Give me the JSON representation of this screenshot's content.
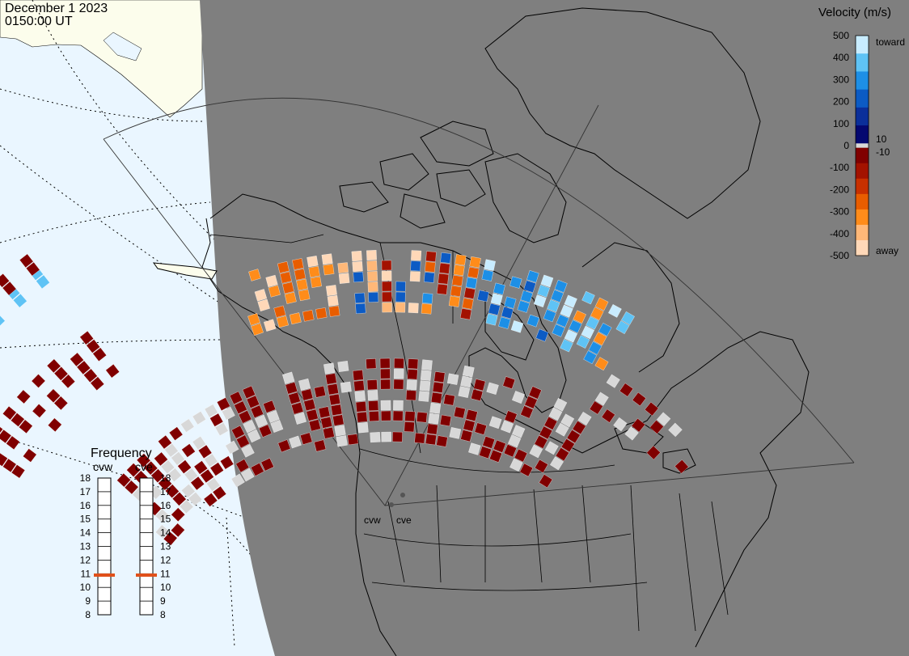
{
  "header": {
    "date": "December 1 2023",
    "time": "0150:00 UT"
  },
  "colorbar": {
    "title": "Velocity (m/s)",
    "ticks": [
      "500",
      "400",
      "300",
      "200",
      "100",
      "0",
      "-100",
      "-200",
      "-300",
      "-400",
      "-500"
    ],
    "tick_values": [
      500,
      400,
      300,
      200,
      100,
      0,
      -100,
      -200,
      -300,
      -400,
      -500
    ],
    "inner_labels": [
      "10",
      "-10"
    ],
    "inner_label_values": [
      10,
      -10
    ],
    "end_labels": {
      "top": "toward",
      "bottom": "away"
    },
    "colors_toward": [
      "#c8ecff",
      "#5fc3f5",
      "#1d8fe6",
      "#0c5bc4",
      "#0b2f9a",
      "#040870"
    ],
    "colors_away": [
      "#800000",
      "#a31200",
      "#c83000",
      "#e85d00",
      "#ff8c1a",
      "#ffb878",
      "#ffd8b8"
    ],
    "ground_scatter_color": "#d8d8d8"
  },
  "frequency_panel": {
    "title": "Frequency",
    "radars": [
      "cvw",
      "cve"
    ],
    "scale": [
      "18",
      "17",
      "16",
      "15",
      "14",
      "13",
      "12",
      "11",
      "10",
      "9",
      "8"
    ],
    "scale_values": [
      18,
      17,
      16,
      15,
      14,
      13,
      12,
      11,
      10,
      9,
      8
    ],
    "values_mhz": [
      10.9,
      10.9
    ],
    "marker_color": "#e0501a"
  },
  "map": {
    "radar_site_labels": [
      "cvw",
      "cve"
    ],
    "colors": {
      "ocean": "#eaf6ff",
      "night": "#7f7f7f",
      "daylight_land": "#fcfdec",
      "coast": "#000000",
      "cell_outline": "#ffffff"
    }
  }
}
